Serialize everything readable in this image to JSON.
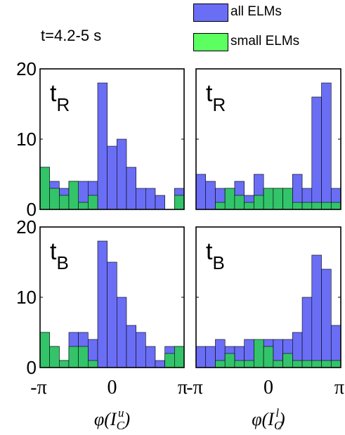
{
  "time_label": "t=4.2-5 s",
  "legend": [
    {
      "label": "all ELMs",
      "color": "#6a6ef5"
    },
    {
      "label": "small ELMs",
      "color": "#5cff60"
    }
  ],
  "colors": {
    "all": "#6a6ef5",
    "small": "#33c46a"
  },
  "chart_data": [
    {
      "type": "bar",
      "panel_label": "t",
      "panel_sub": "R",
      "xlim": [
        "-π",
        "π"
      ],
      "ylim": [
        0,
        20
      ],
      "yticks": [
        "0",
        "10",
        "20"
      ],
      "xticks": [],
      "xlabel": "",
      "series": [
        {
          "name": "all ELMs",
          "values": [
            6,
            4,
            3,
            4,
            4,
            4,
            18,
            9,
            10,
            6,
            3,
            3,
            2,
            0,
            3
          ]
        },
        {
          "name": "small ELMs",
          "values": [
            6,
            3,
            2,
            4,
            1,
            2,
            0,
            0,
            0,
            0,
            0,
            0,
            0,
            0,
            2
          ]
        }
      ]
    },
    {
      "type": "bar",
      "panel_label": "t",
      "panel_sub": "R",
      "xlim": [
        "-π",
        "π"
      ],
      "ylim": [
        0,
        20
      ],
      "yticks": [],
      "xticks": [],
      "xlabel": "",
      "series": [
        {
          "name": "all ELMs",
          "values": [
            5,
            4,
            3,
            3,
            4,
            2,
            5,
            3,
            3,
            3,
            5,
            3,
            16,
            18,
            3
          ]
        },
        {
          "name": "small ELMs",
          "values": [
            0,
            0,
            1,
            3,
            2,
            1,
            2,
            3,
            3,
            3,
            1,
            1,
            1,
            1,
            1
          ]
        }
      ]
    },
    {
      "type": "bar",
      "panel_label": "t",
      "panel_sub": "B",
      "xlim": [
        "-π",
        "π"
      ],
      "ylim": [
        0,
        20
      ],
      "yticks": [
        "0",
        "10",
        "20"
      ],
      "xticks": [
        "-π",
        "0",
        "π"
      ],
      "xlabel": "φ(I_C^u)",
      "series": [
        {
          "name": "all ELMs",
          "values": [
            5,
            3,
            1,
            5,
            5,
            4,
            18,
            15,
            10,
            6,
            5,
            3,
            1,
            3,
            3
          ]
        },
        {
          "name": "small ELMs",
          "values": [
            5,
            3,
            1,
            3,
            3,
            1,
            0,
            0,
            0,
            0,
            0,
            0,
            0,
            2,
            3
          ]
        }
      ]
    },
    {
      "type": "bar",
      "panel_label": "t",
      "panel_sub": "B",
      "xlim": [
        "-π",
        "π"
      ],
      "ylim": [
        0,
        20
      ],
      "yticks": [],
      "xticks": [
        "-π",
        "0",
        "π"
      ],
      "xlabel": "φ(I_C^l)",
      "series": [
        {
          "name": "all ELMs",
          "values": [
            3,
            3,
            4,
            3,
            3,
            4,
            3,
            4,
            4,
            4,
            5,
            10,
            16,
            14,
            6
          ]
        },
        {
          "name": "small ELMs",
          "values": [
            0,
            0,
            1,
            2,
            1,
            1,
            4,
            3,
            1,
            2,
            1,
            1,
            1,
            1,
            1
          ]
        }
      ]
    }
  ]
}
